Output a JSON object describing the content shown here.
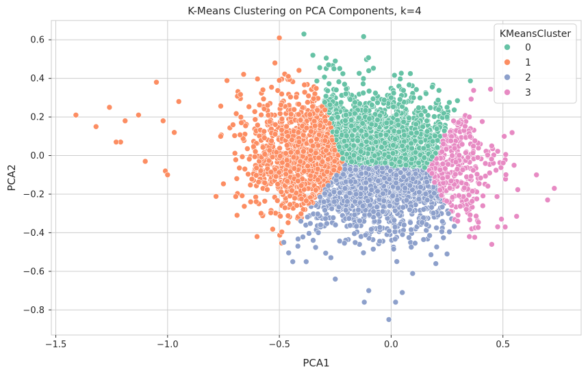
{
  "chart_data": {
    "type": "scatter",
    "title": "K-Means Clustering on PCA Components, k=4",
    "xlabel": "PCA1",
    "ylabel": "PCA2",
    "xlim": [
      -1.52,
      0.85
    ],
    "ylim": [
      -0.93,
      0.7
    ],
    "xticks": [
      -1.5,
      -1.0,
      -0.5,
      0.0,
      0.5
    ],
    "xtick_labels": [
      "−1.5",
      "−1.0",
      "−0.5",
      "0.0",
      "0.5"
    ],
    "yticks": [
      0.6,
      0.4,
      0.2,
      0.0,
      -0.2,
      -0.4,
      -0.6,
      -0.8
    ],
    "ytick_labels": [
      "0.6",
      "0.4",
      "0.2",
      "0.0",
      "−0.2",
      "−0.4",
      "−0.6",
      "−0.8"
    ],
    "grid": true,
    "legend": {
      "title": "KMeansCluster",
      "placement": "top-right",
      "entries": [
        "0",
        "1",
        "2",
        "3"
      ]
    },
    "series": [
      {
        "name": "0",
        "color": "#66c2a5",
        "cluster_center": [
          -0.02,
          0.15
        ]
      },
      {
        "name": "1",
        "color": "#fc8d62",
        "cluster_center": [
          -0.48,
          0.02
        ]
      },
      {
        "name": "2",
        "color": "#8da0cb",
        "cluster_center": [
          -0.05,
          -0.27
        ]
      },
      {
        "name": "3",
        "color": "#e78ac3",
        "cluster_center": [
          0.45,
          -0.05
        ]
      }
    ],
    "sample_points": {
      "1": [
        [
          -1.41,
          0.21
        ],
        [
          -1.32,
          0.15
        ],
        [
          -1.26,
          0.25
        ],
        [
          -1.21,
          0.07
        ],
        [
          -1.23,
          0.07
        ],
        [
          -1.19,
          0.18
        ],
        [
          -1.13,
          0.21
        ],
        [
          -1.1,
          -0.03
        ],
        [
          -1.05,
          0.38
        ],
        [
          -1.02,
          0.18
        ],
        [
          -1.01,
          -0.08
        ],
        [
          -1.0,
          -0.1
        ],
        [
          -0.97,
          0.12
        ],
        [
          -0.95,
          0.28
        ],
        [
          -0.5,
          0.61
        ],
        [
          -0.52,
          0.48
        ],
        [
          -0.5,
          0.39
        ],
        [
          -0.46,
          0.41
        ],
        [
          -0.48,
          -0.45
        ],
        [
          -0.6,
          -0.42
        ]
      ],
      "0": [
        [
          -0.39,
          0.63
        ],
        [
          -0.35,
          0.52
        ],
        [
          -0.28,
          0.47
        ],
        [
          -0.25,
          0.49
        ],
        [
          -0.1,
          0.44
        ],
        [
          0.0,
          0.3
        ],
        [
          0.1,
          0.3
        ],
        [
          0.25,
          0.25
        ],
        [
          -0.2,
          0.05
        ],
        [
          0.05,
          0.05
        ]
      ],
      "2": [
        [
          -0.44,
          -0.55
        ],
        [
          -0.38,
          -0.55
        ],
        [
          -0.25,
          -0.64
        ],
        [
          -0.1,
          -0.7
        ],
        [
          -0.12,
          -0.76
        ],
        [
          0.02,
          -0.76
        ],
        [
          0.05,
          -0.71
        ],
        [
          -0.01,
          -0.85
        ],
        [
          0.2,
          -0.56
        ],
        [
          0.25,
          -0.51
        ]
      ],
      "3": [
        [
          0.25,
          0.2
        ],
        [
          0.35,
          0.2
        ],
        [
          0.45,
          0.05
        ],
        [
          0.55,
          -0.05
        ],
        [
          0.65,
          -0.1
        ],
        [
          0.73,
          -0.17
        ],
        [
          0.7,
          -0.23
        ],
        [
          0.35,
          -0.42
        ],
        [
          0.45,
          -0.46
        ],
        [
          0.51,
          -0.37
        ]
      ]
    }
  }
}
